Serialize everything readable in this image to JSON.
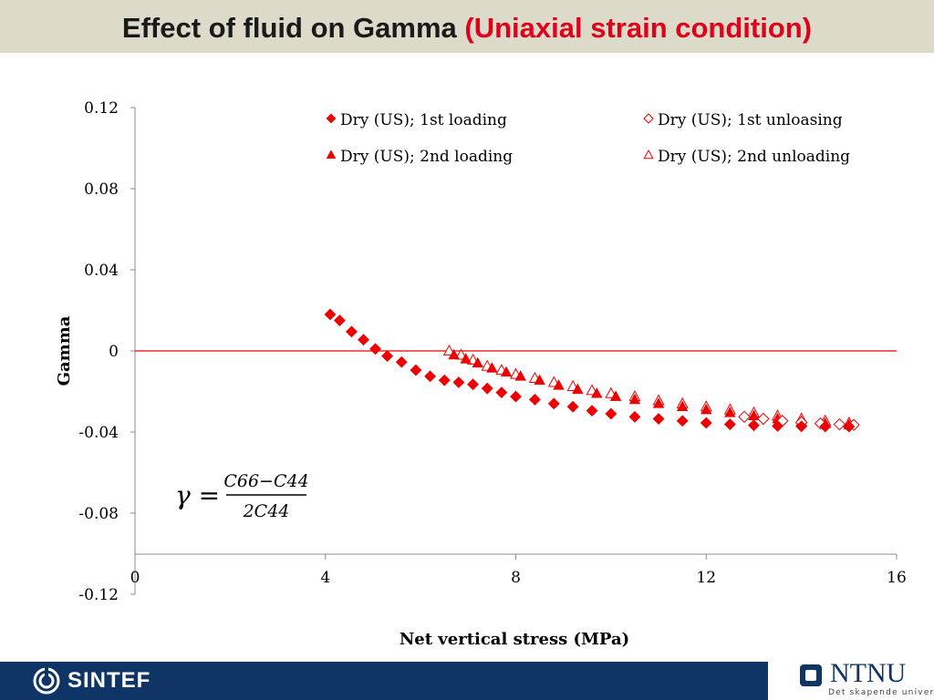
{
  "slide": {
    "title_main": "Effect of fluid on Gamma",
    "title_highlight": "(Uniaxial strain condition)"
  },
  "footer": {
    "left_logo": "SINTEF",
    "right_logo": "NTNU",
    "right_tagline": "Det skapende universitet"
  },
  "colors": {
    "series": "#ee0000",
    "title_highlight": "#e0001b",
    "footer_bar": "#0f3566",
    "title_bar": "#dcdac8"
  },
  "chart_data": {
    "type": "scatter",
    "title": "",
    "xlabel": "Net vertical stress (MPa)",
    "ylabel": "Gamma",
    "xlim": [
      0,
      16
    ],
    "ylim": [
      -0.12,
      0.12
    ],
    "x_ticks": [
      0,
      4,
      8,
      12,
      16
    ],
    "y_ticks": [
      0.12,
      0.08,
      0.04,
      0,
      -0.04,
      -0.08,
      -0.12
    ],
    "x_tick_labels": [
      "0",
      "4",
      "8",
      "12",
      "16"
    ],
    "y_tick_labels": [
      "0.12",
      "0.08",
      "0.04",
      "0",
      "-0.04",
      "-0.08",
      "-0.12"
    ],
    "grid": false,
    "legend_position": "top-right",
    "annotation_formula": {
      "lhs": "γ =",
      "numerator": "C66−C44",
      "denominator": "2C44"
    },
    "reference_line": {
      "y": 0,
      "color": "#ee0000"
    },
    "series": [
      {
        "name": "Dry (US); 1st loading",
        "marker": "diamond-filled",
        "x": [
          4.1,
          4.3,
          4.55,
          4.8,
          5.05,
          5.3,
          5.6,
          5.9,
          6.2,
          6.5,
          6.8,
          7.1,
          7.4,
          7.7,
          8.0,
          8.4,
          8.8,
          9.2,
          9.6,
          10.0,
          10.5,
          11.0,
          11.5,
          12.0,
          12.5,
          13.0,
          13.5,
          14.0,
          14.5,
          15.0
        ],
        "y": [
          0.018,
          0.015,
          0.0095,
          0.0055,
          0.001,
          -0.0025,
          -0.0055,
          -0.0095,
          -0.0125,
          -0.0145,
          -0.0155,
          -0.0165,
          -0.0185,
          -0.0205,
          -0.0225,
          -0.024,
          -0.026,
          -0.0275,
          -0.0295,
          -0.031,
          -0.0325,
          -0.0335,
          -0.0345,
          -0.0355,
          -0.0362,
          -0.0367,
          -0.037,
          -0.0372,
          -0.0373,
          -0.0373
        ]
      },
      {
        "name": "Dry (US); 1st unloasing",
        "marker": "diamond-open",
        "x": [
          12.8,
          13.2,
          13.6,
          14.0,
          14.4,
          14.8,
          15.1
        ],
        "y": [
          -0.0325,
          -0.0335,
          -0.0345,
          -0.0352,
          -0.0358,
          -0.0362,
          -0.0365
        ]
      },
      {
        "name": "Dry (US); 2nd loading",
        "marker": "triangle-filled",
        "x": [
          6.7,
          6.95,
          7.2,
          7.5,
          7.8,
          8.1,
          8.5,
          8.9,
          9.3,
          9.7,
          10.1,
          10.5,
          11.0,
          11.5,
          12.0,
          12.5,
          13.0,
          13.5,
          14.0,
          14.5,
          15.0
        ],
        "y": [
          -0.002,
          -0.004,
          -0.006,
          -0.0085,
          -0.0105,
          -0.0125,
          -0.0145,
          -0.017,
          -0.019,
          -0.021,
          -0.0225,
          -0.024,
          -0.026,
          -0.0275,
          -0.029,
          -0.0305,
          -0.032,
          -0.0335,
          -0.0348,
          -0.0358,
          -0.0365
        ]
      },
      {
        "name": "Dry (US); 2nd unloading",
        "marker": "triangle-open",
        "x": [
          6.6,
          6.85,
          7.1,
          7.4,
          7.7,
          8.0,
          8.4,
          8.8,
          9.2,
          9.6,
          10.0,
          10.5,
          11.0,
          11.5,
          12.0,
          12.5,
          13.0,
          13.5,
          14.0,
          14.5,
          15.0
        ],
        "y": [
          0.0,
          -0.002,
          -0.0045,
          -0.0075,
          -0.0095,
          -0.0115,
          -0.0135,
          -0.0155,
          -0.0175,
          -0.0195,
          -0.021,
          -0.0225,
          -0.0245,
          -0.026,
          -0.0275,
          -0.029,
          -0.0305,
          -0.032,
          -0.0335,
          -0.0345,
          -0.0355
        ]
      }
    ]
  }
}
